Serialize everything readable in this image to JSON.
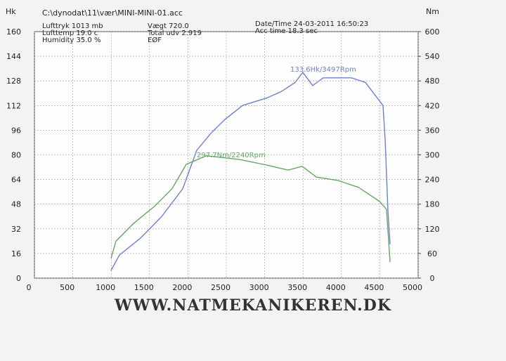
{
  "chart_data": {
    "type": "line",
    "file": "C:\\dynodat\\11\\vær\\MINI-MINI-01.acc",
    "info": [
      "Lufttryk  1013 mb",
      "Lufttemp  19.0 c",
      "Humidity  35.0 %",
      "Vægt       720.0",
      "Total udv 2.919",
      "EØF",
      "Date/Time  24-03-2011 16:50:23",
      "Acc time  18.3 sec"
    ],
    "ylabel": "Hk",
    "y2label": "Nm",
    "footer": "WWW.NATMEKANIKEREN.DK",
    "annotations": [
      "133.6Hk/3497Rpm",
      "297.7Nm/2240Rpm"
    ],
    "xlim": [
      0,
      5000
    ],
    "xticks": [
      0,
      500,
      1000,
      1500,
      2000,
      2500,
      3000,
      3500,
      4000,
      4500,
      5000
    ],
    "ylim": [
      0,
      160
    ],
    "yticks": [
      0,
      16,
      32,
      48,
      64,
      80,
      96,
      112,
      128,
      144,
      160
    ],
    "y2lim": [
      0,
      600
    ],
    "y2ticks": [
      0,
      60,
      120,
      180,
      240,
      300,
      360,
      420,
      480,
      540,
      600
    ],
    "grid": true,
    "series": [
      {
        "color": "#6f82cc",
        "x": [
          998,
          1108,
          1383,
          1658,
          1932,
          2115,
          2299,
          2482,
          2711,
          3031,
          3214,
          3397,
          3497,
          3626,
          3764,
          3947,
          4130,
          4313,
          4496,
          4542,
          4570,
          4606,
          4634
        ],
        "values": [
          5,
          15,
          26,
          40,
          58,
          83,
          94,
          103,
          112,
          117,
          121,
          127,
          133.6,
          125,
          130,
          130,
          130,
          127,
          115,
          112,
          90,
          44,
          22
        ]
      },
      {
        "color": "#62a862",
        "axis": "y2",
        "x": [
          998,
          1062,
          1291,
          1566,
          1795,
          1978,
          2240,
          2665,
          3031,
          3306,
          3489,
          3672,
          3947,
          4222,
          4496,
          4588,
          4634
        ],
        "values": [
          48,
          90,
          133,
          175,
          218,
          277,
          297.7,
          289,
          275,
          263,
          272,
          246,
          238,
          221,
          187,
          167,
          39
        ]
      }
    ]
  }
}
